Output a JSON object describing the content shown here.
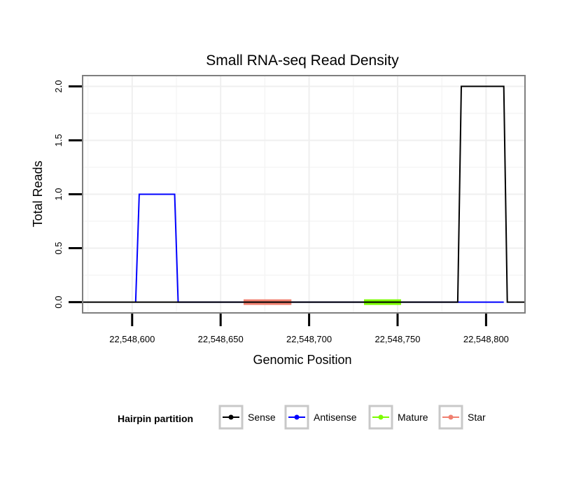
{
  "chart_data": {
    "type": "line",
    "title": "Small RNA-seq Read Density",
    "xlabel": "Genomic Position",
    "ylabel": "Total Reads",
    "xlim": [
      22548572,
      22548822
    ],
    "ylim": [
      -0.1,
      2.1
    ],
    "x_ticks": [
      22548600,
      22548650,
      22548700,
      22548750,
      22548800
    ],
    "x_tick_labels": [
      "22,548,600",
      "22,548,650",
      "22,548,700",
      "22,548,750",
      "22,548,800"
    ],
    "y_ticks": [
      0,
      0.5,
      1,
      1.5,
      2
    ],
    "y_tick_labels": [
      "0.0",
      "0.5",
      "1.0",
      "1.5",
      "2.0"
    ],
    "grid": true,
    "legend": {
      "title": "Hairpin partition",
      "placement": "bottom",
      "entries": [
        {
          "name": "Sense",
          "color": "#000000"
        },
        {
          "name": "Antisense",
          "color": "#0000ff"
        },
        {
          "name": "Mature",
          "color": "#7cfc00"
        },
        {
          "name": "Star",
          "color": "#f08070"
        }
      ]
    },
    "series": [
      {
        "name": "Sense",
        "color": "#000000",
        "x": [
          22548572,
          22548784,
          22548786,
          22548810,
          22548812,
          22548822
        ],
        "y": [
          0,
          0,
          2,
          2,
          0,
          0
        ]
      },
      {
        "name": "Antisense",
        "color": "#0000ff",
        "x": [
          22548602,
          22548604,
          22548624,
          22548626,
          22548784,
          22548810
        ],
        "y": [
          0,
          1,
          1,
          0,
          0,
          0
        ]
      },
      {
        "name": "Mature",
        "color": "#7cfc00",
        "x": [
          22548731,
          22548752
        ],
        "y": [
          0,
          0
        ]
      },
      {
        "name": "Star",
        "color": "#f08070",
        "x": [
          22548663,
          22548690
        ],
        "y": [
          0,
          0
        ]
      }
    ]
  }
}
